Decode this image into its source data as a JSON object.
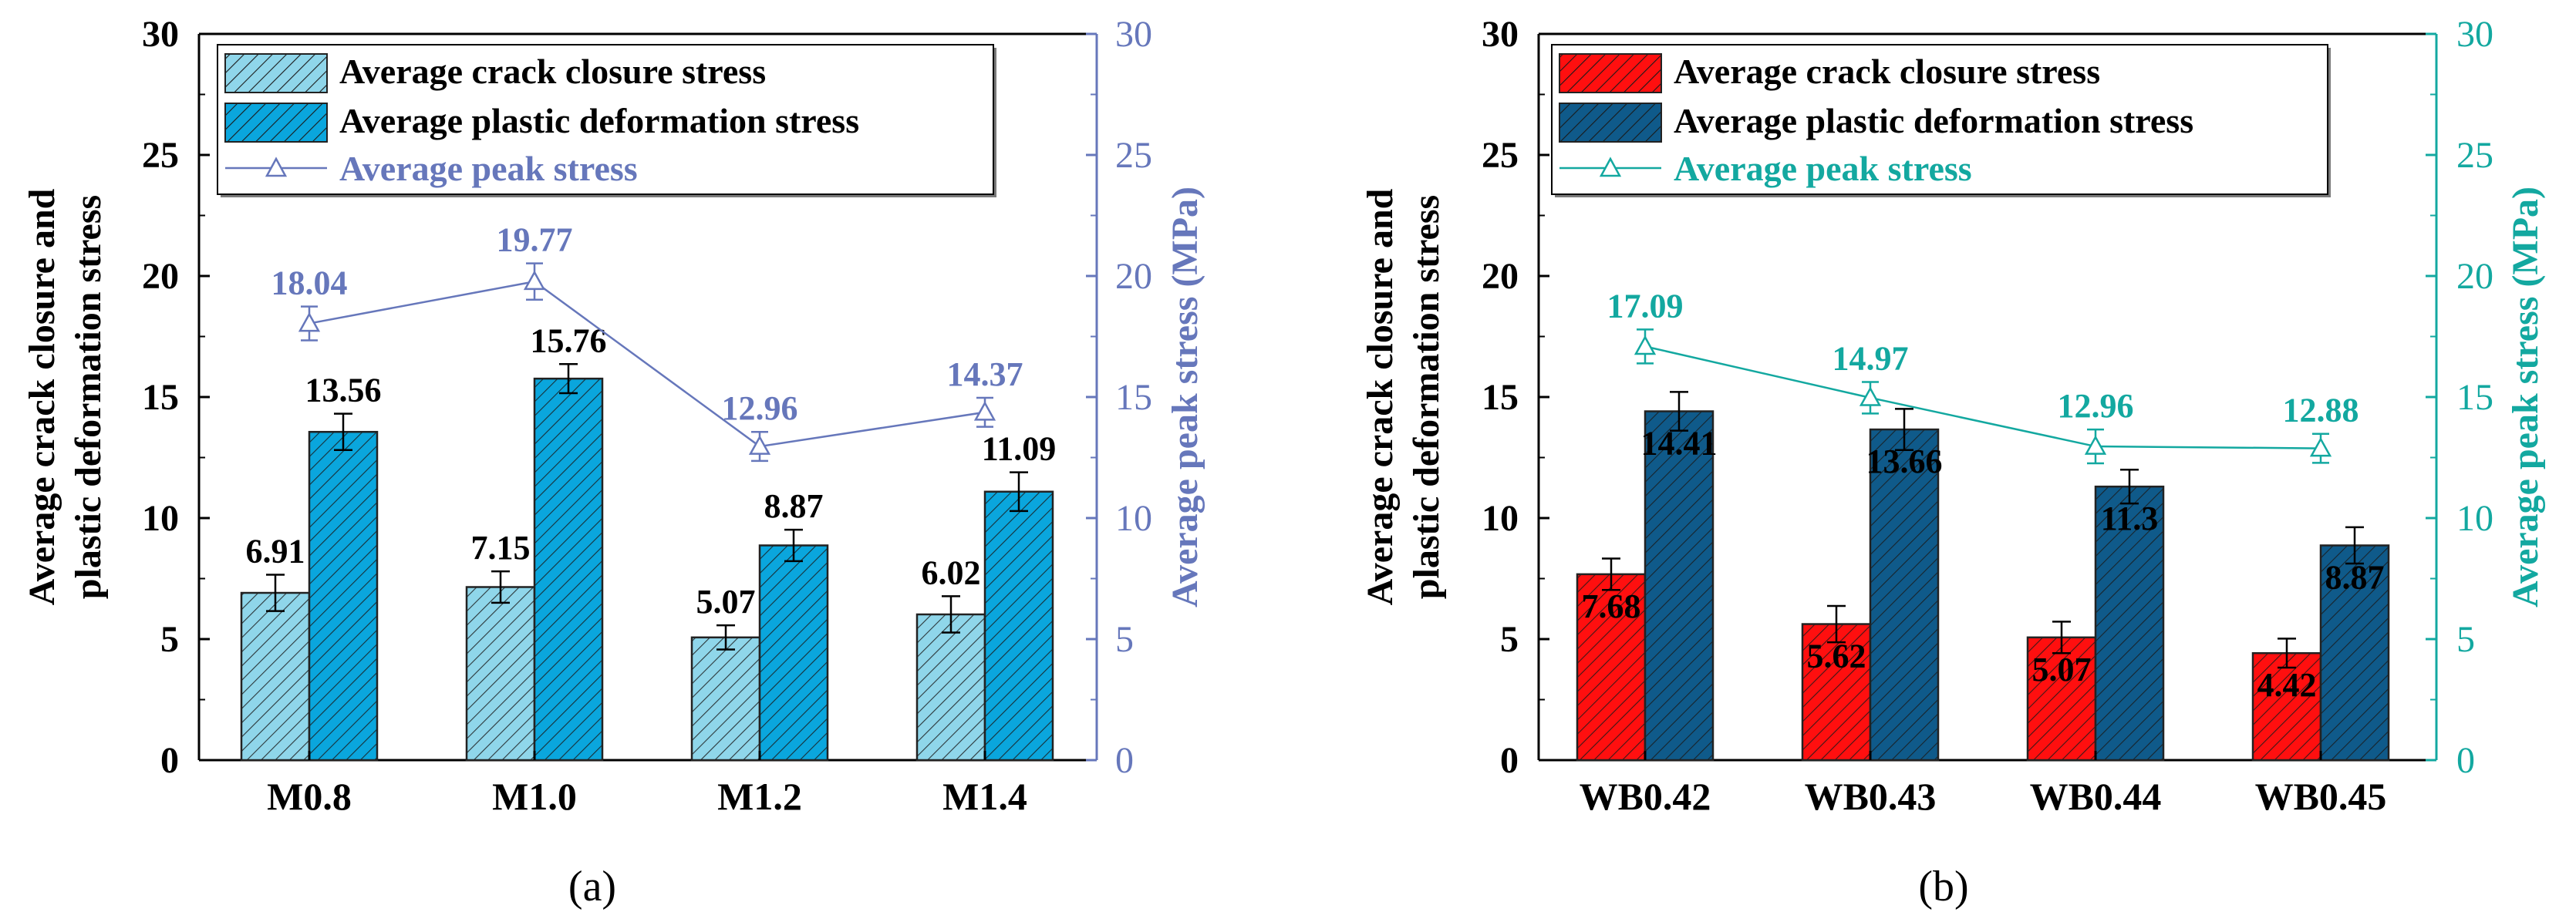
{
  "panels": [
    {
      "id": "a",
      "caption": "(a)",
      "colors": {
        "closure": "#8fd6ea",
        "plastic": "#0aa6dd",
        "peak": "#6677bb",
        "barStroke": "#222222",
        "hatch": "#1a1a1a"
      },
      "legend": {
        "closure": "Average crack closure stress",
        "plastic": "Average plastic deformation stress",
        "peak": "Average peak stress"
      },
      "labelsInside": false
    },
    {
      "id": "b",
      "caption": "(b)",
      "colors": {
        "closure": "#ff0f0f",
        "plastic": "#0f5a8a",
        "peak": "#13a8a0",
        "barStroke": "#222222",
        "hatch": "#1a1a1a"
      },
      "legend": {
        "closure": "Average crack closure stress",
        "plastic": "Average plastic deformation stress",
        "peak": "Average peak stress"
      },
      "labelsInside": true
    }
  ],
  "chart_data": [
    {
      "type": "bar",
      "panel": "a",
      "categories": [
        "M0.8",
        "M1.0",
        "M1.2",
        "M1.4"
      ],
      "series": [
        {
          "name": "Average crack closure stress",
          "values": [
            6.91,
            7.15,
            5.07,
            6.02
          ],
          "labels": [
            "6.91",
            "7.15",
            "5.07",
            "6.02"
          ],
          "errors": [
            0.75,
            0.65,
            0.5,
            0.75
          ]
        },
        {
          "name": "Average plastic deformation stress",
          "values": [
            13.56,
            15.76,
            8.87,
            11.09
          ],
          "labels": [
            "13.56",
            "15.76",
            "8.87",
            "11.09"
          ],
          "errors": [
            0.75,
            0.6,
            0.65,
            0.8
          ]
        },
        {
          "name": "Average peak stress",
          "type": "line",
          "axis": "right",
          "values": [
            18.04,
            19.77,
            12.96,
            14.37
          ],
          "labels": [
            "18.04",
            "19.77",
            "12.96",
            "14.37"
          ],
          "errors": [
            0.7,
            0.75,
            0.6,
            0.6
          ]
        }
      ],
      "ylabel": "Average crack closure and plastic deformation stress",
      "ylabel_right": "Average peak stress (MPa)",
      "ylim": [
        0,
        30
      ],
      "ylim_right": [
        0,
        30
      ],
      "yticks": [
        "0",
        "5",
        "10",
        "15",
        "20",
        "25",
        "30"
      ],
      "legend_position": "top-left"
    },
    {
      "type": "bar",
      "panel": "b",
      "categories": [
        "WB0.42",
        "WB0.43",
        "WB0.44",
        "WB0.45"
      ],
      "series": [
        {
          "name": "Average crack closure stress",
          "values": [
            7.68,
            5.62,
            5.07,
            4.42
          ],
          "labels": [
            "7.68",
            "5.62",
            "5.07",
            "4.42"
          ],
          "errors": [
            0.65,
            0.75,
            0.65,
            0.6
          ]
        },
        {
          "name": "Average plastic deformation stress",
          "values": [
            14.41,
            13.66,
            11.3,
            8.87
          ],
          "labels": [
            "14.41",
            "13.66",
            "11.3",
            "8.87"
          ],
          "errors": [
            0.8,
            0.85,
            0.7,
            0.75
          ]
        },
        {
          "name": "Average peak stress",
          "type": "line",
          "axis": "right",
          "values": [
            17.09,
            14.97,
            12.96,
            12.88
          ],
          "labels": [
            "17.09",
            "14.97",
            "12.96",
            "12.88"
          ],
          "errors": [
            0.7,
            0.65,
            0.7,
            0.6
          ]
        }
      ],
      "ylabel": "Average crack closure and plastic deformation stress",
      "ylabel_right": "Average peak stress (MPa)",
      "ylim": [
        0,
        30
      ],
      "ylim_right": [
        0,
        30
      ],
      "yticks": [
        "0",
        "5",
        "10",
        "15",
        "20",
        "25",
        "30"
      ],
      "legend_position": "top-left"
    }
  ]
}
